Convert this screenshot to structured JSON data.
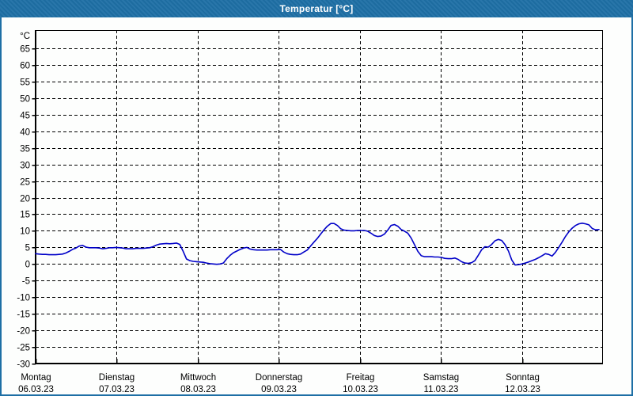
{
  "window": {
    "title": "Temperatur [°C]"
  },
  "colors": {
    "titlebar_bg": "#1E6FA5",
    "titlebar_text": "#FFFFFF",
    "window_border": "#1E6FA5",
    "content_bg": "#FDFEFD",
    "grid": "#000000",
    "axis": "#000000",
    "text": "#000000",
    "series_line": "#0000C8"
  },
  "chart_data": {
    "type": "line",
    "title": "Temperatur [°C]",
    "ylabel": "°C",
    "grid": "dashed",
    "legend": "none",
    "ylim": [
      -30,
      70.5
    ],
    "y_ticks": [
      65,
      60,
      55,
      50,
      45,
      40,
      35,
      30,
      25,
      20,
      15,
      10,
      5,
      0,
      -5,
      -10,
      -15,
      -20,
      -25,
      -30
    ],
    "x_days": [
      {
        "name": "Montag",
        "date": "06.03.23"
      },
      {
        "name": "Dienstag",
        "date": "07.03.23"
      },
      {
        "name": "Mittwoch",
        "date": "08.03.23"
      },
      {
        "name": "Donnerstag",
        "date": "09.03.23"
      },
      {
        "name": "Freitag",
        "date": "10.03.23"
      },
      {
        "name": "Samstag",
        "date": "11.03.23"
      },
      {
        "name": "Sonntag",
        "date": "12.03.23"
      }
    ],
    "series": [
      {
        "name": "Temperatur",
        "unit": "°C",
        "sample_interval_hours": 1,
        "values_hourly": [
          3.1,
          3.0,
          2.9,
          2.9,
          2.8,
          2.8,
          2.8,
          2.9,
          3.0,
          3.3,
          3.8,
          4.4,
          4.8,
          5.4,
          5.6,
          5.1,
          4.9,
          4.9,
          4.9,
          4.8,
          4.6,
          4.7,
          4.9,
          4.9,
          5.0,
          4.9,
          4.8,
          4.6,
          4.6,
          4.6,
          4.7,
          4.7,
          4.7,
          4.8,
          4.9,
          5.2,
          5.7,
          6.0,
          6.1,
          6.2,
          6.1,
          6.2,
          6.3,
          5.9,
          3.8,
          1.5,
          1.0,
          0.8,
          0.7,
          0.6,
          0.5,
          0.3,
          0.1,
          0.0,
          -0.1,
          0.0,
          0.3,
          1.6,
          2.6,
          3.4,
          3.9,
          4.4,
          4.8,
          5.0,
          4.5,
          4.3,
          4.2,
          4.2,
          4.2,
          4.2,
          4.3,
          4.3,
          4.3,
          4.4,
          3.6,
          3.1,
          2.9,
          2.8,
          2.8,
          3.0,
          3.6,
          4.2,
          5.4,
          6.6,
          7.7,
          9.0,
          10.3,
          11.4,
          12.2,
          12.2,
          11.6,
          10.6,
          10.2,
          10.1,
          10.0,
          10.0,
          10.1,
          10.1,
          10.1,
          9.9,
          9.3,
          8.6,
          8.3,
          8.4,
          9.0,
          10.2,
          11.6,
          11.9,
          11.4,
          10.4,
          9.9,
          9.3,
          7.8,
          5.8,
          3.8,
          2.5,
          2.2,
          2.2,
          2.2,
          2.1,
          2.1,
          2.0,
          1.7,
          1.6,
          1.6,
          1.8,
          1.4,
          0.7,
          0.3,
          0.2,
          0.4,
          1.0,
          2.6,
          4.3,
          5.2,
          5.1,
          5.9,
          7.0,
          7.4,
          7.1,
          5.8,
          3.9,
          1.2,
          -0.3,
          -0.2,
          0.0,
          0.3,
          0.6,
          1.0,
          1.4,
          1.9,
          2.5,
          3.1,
          2.9,
          2.4,
          3.5,
          5.0,
          6.6,
          8.3,
          9.7,
          10.8,
          11.6,
          12.1,
          12.3,
          12.1,
          11.8,
          10.7,
          10.3,
          10.4
        ]
      }
    ]
  }
}
